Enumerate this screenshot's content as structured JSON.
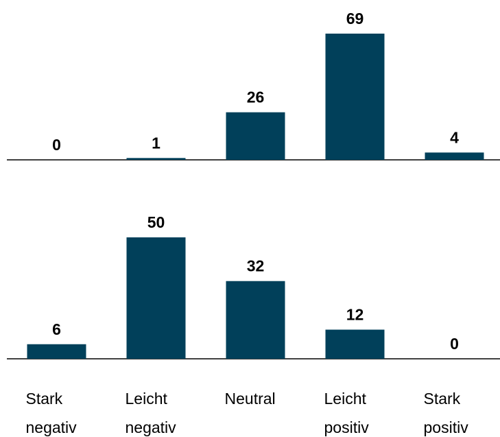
{
  "chart_data": [
    {
      "type": "bar",
      "categories": [
        null,
        null,
        null,
        null,
        null
      ],
      "values": [
        0,
        1,
        26,
        69,
        4
      ],
      "color": "#01405a"
    },
    {
      "type": "bar",
      "categories": [
        "Stark negativ",
        "Leicht negativ",
        "Neutral",
        "Leicht positiv",
        "Stark positiv"
      ],
      "values": [
        6,
        50,
        32,
        12,
        0
      ],
      "color": "#01405a"
    }
  ]
}
